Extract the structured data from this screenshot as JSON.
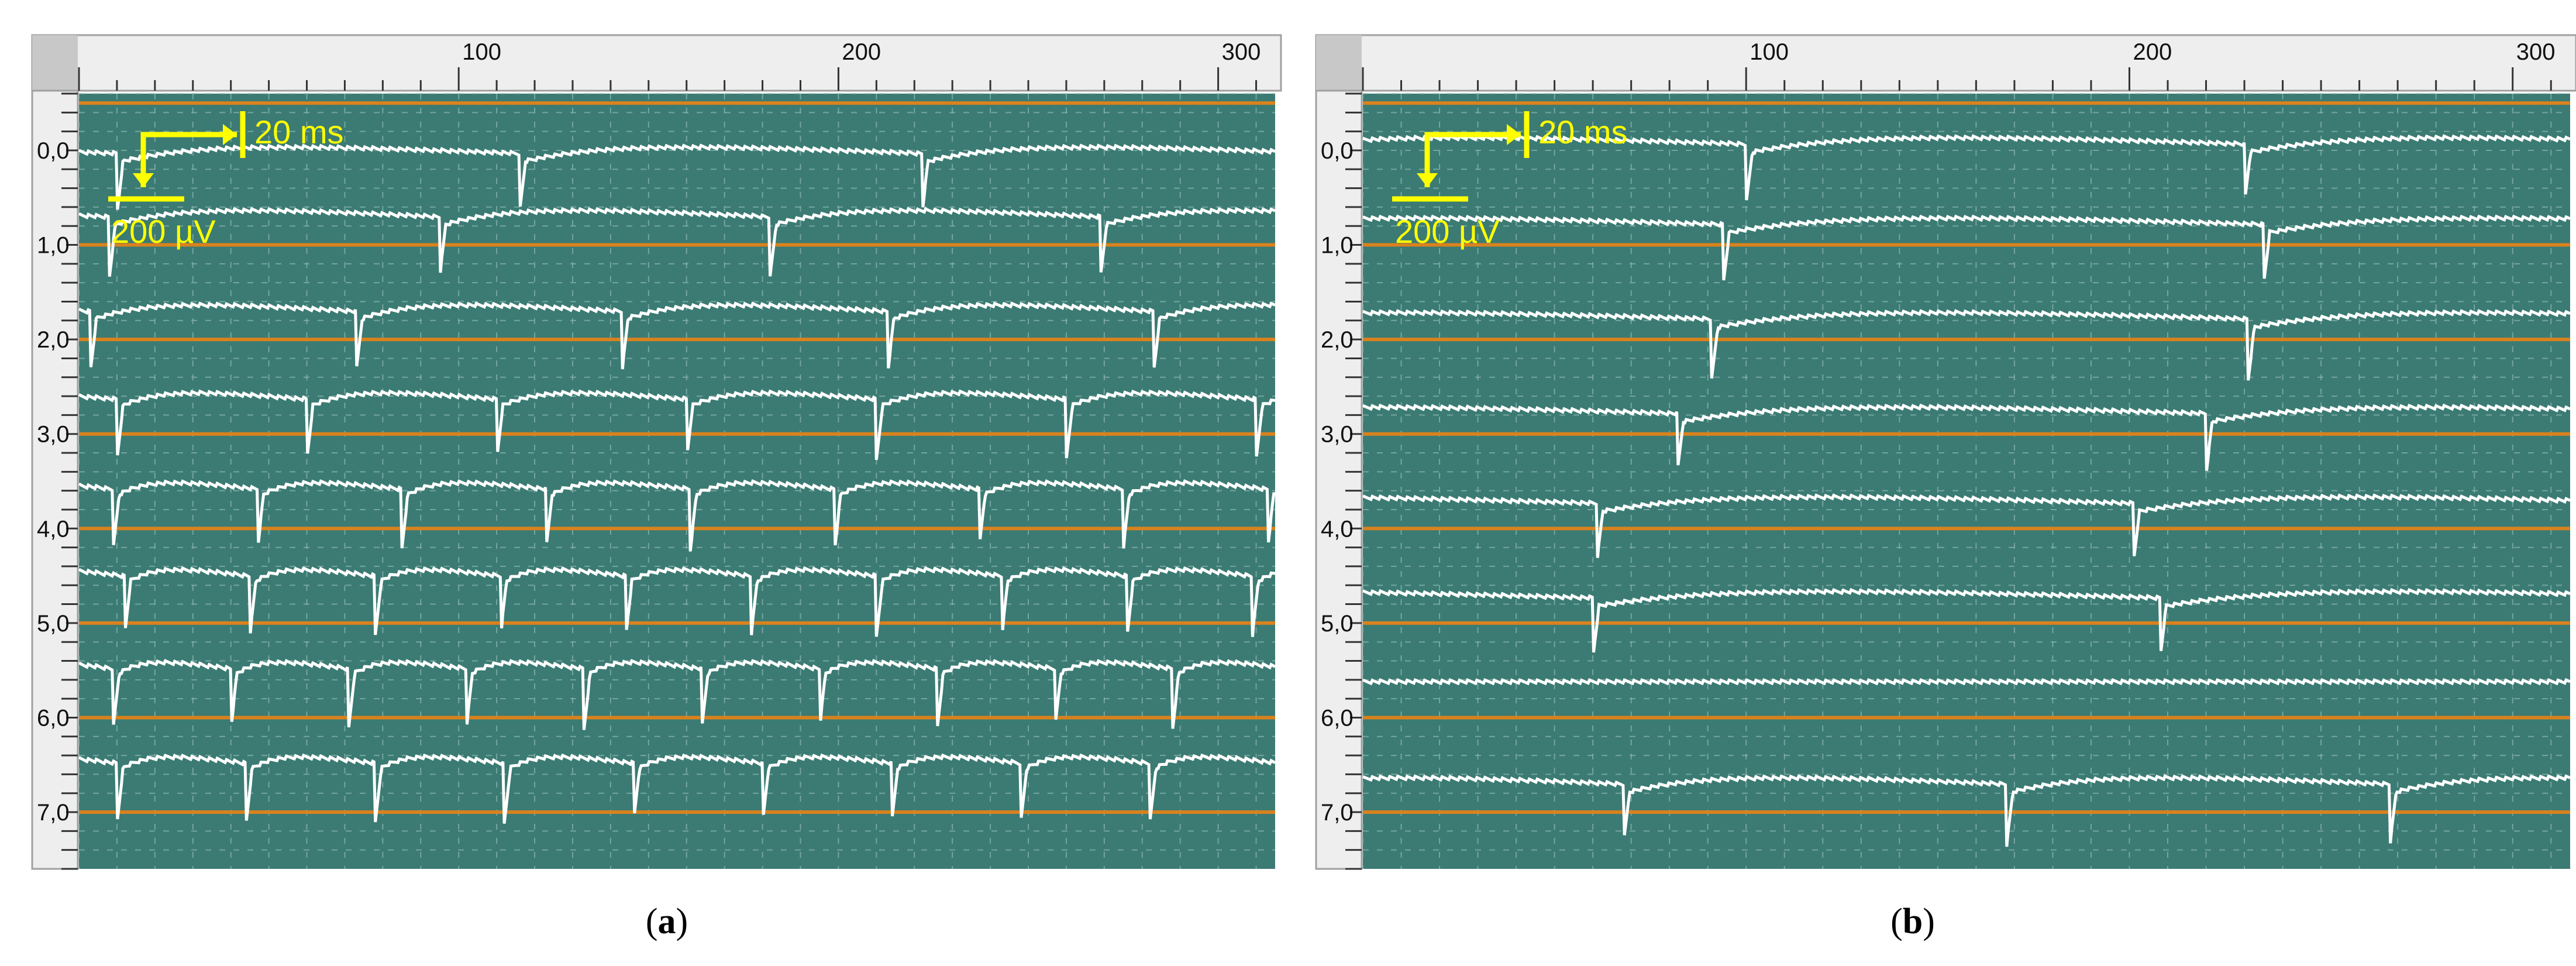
{
  "captions": {
    "a_open": "(",
    "a_letter": "a",
    "a_close": ")",
    "b_open": "(",
    "b_letter": "b",
    "b_close": ")"
  },
  "colors": {
    "bg": "#3b7b73",
    "trace": "#ffffff",
    "baseline": "#d9821e",
    "scale": "#ffff00",
    "ruler": "#eeeeee",
    "grid": "#8fb8b2"
  },
  "panels": [
    {
      "id": "a",
      "top_ticks": [
        "100",
        "200",
        "300"
      ],
      "left_ticks": [
        "0,0",
        "1,0",
        "2,0",
        "3,0",
        "4,0",
        "5,0",
        "6,0",
        "7,0"
      ],
      "scale_time": "20 ms",
      "scale_volt": "200 µV"
    },
    {
      "id": "b",
      "top_ticks": [
        "100",
        "200",
        "300"
      ],
      "left_ticks": [
        "0,0",
        "1,0",
        "2,0",
        "3,0",
        "4,0",
        "5,0",
        "6,0",
        "7,0"
      ],
      "scale_time": "20 ms",
      "scale_volt": "200 µV"
    }
  ],
  "chart_data": [
    {
      "type": "line",
      "panel": "a",
      "x_range": [
        0,
        315
      ],
      "y_range": [
        -0.6,
        7.6
      ],
      "x_ticks": [
        100,
        200,
        300
      ],
      "y_ticks": [
        0,
        1,
        2,
        3,
        4,
        5,
        6,
        7
      ],
      "channels": [
        {
          "baseline": -0.5,
          "trace_offset": -0.05,
          "period": 106,
          "phase": 116
        },
        {
          "baseline": 1.0,
          "trace_offset": 0.62,
          "period": 87,
          "phase": 95
        },
        {
          "baseline": 2.0,
          "trace_offset": 1.62,
          "period": 70,
          "phase": 73
        },
        {
          "baseline": 3.0,
          "trace_offset": 2.55,
          "period": 50,
          "phase": 60
        },
        {
          "baseline": 4.0,
          "trace_offset": 3.5,
          "period": 38,
          "phase": 47
        },
        {
          "baseline": 5.0,
          "trace_offset": 4.42,
          "period": 33,
          "phase": 45
        },
        {
          "baseline": 6.0,
          "trace_offset": 5.4,
          "period": 31,
          "phase": 40
        },
        {
          "baseline": 7.0,
          "trace_offset": 6.4,
          "period": 34,
          "phase": 44
        }
      ]
    },
    {
      "type": "line",
      "panel": "b",
      "x_range": [
        0,
        315
      ],
      "y_range": [
        -0.6,
        7.6
      ],
      "x_ticks": [
        100,
        200,
        300
      ],
      "y_ticks": [
        0,
        1,
        2,
        3,
        4,
        5,
        6,
        7
      ],
      "channels": [
        {
          "baseline": -0.5,
          "trace_offset": -0.15,
          "period": 130,
          "phase": 100
        },
        {
          "baseline": 1.0,
          "trace_offset": 0.7,
          "period": 141,
          "phase": 94
        },
        {
          "baseline": 2.0,
          "trace_offset": 1.7,
          "period": 140,
          "phase": 91
        },
        {
          "baseline": 3.0,
          "trace_offset": 2.7,
          "period": 138,
          "phase": 82
        },
        {
          "baseline": 4.0,
          "trace_offset": 3.65,
          "period": 140,
          "phase": 61
        },
        {
          "baseline": 5.0,
          "trace_offset": 4.65,
          "period": 148,
          "phase": 60
        },
        {
          "baseline": 6.0,
          "trace_offset": 5.62,
          "period": 0,
          "phase": 0
        },
        {
          "baseline": 7.0,
          "trace_offset": 6.62,
          "period": 100,
          "phase": 68
        }
      ]
    }
  ]
}
